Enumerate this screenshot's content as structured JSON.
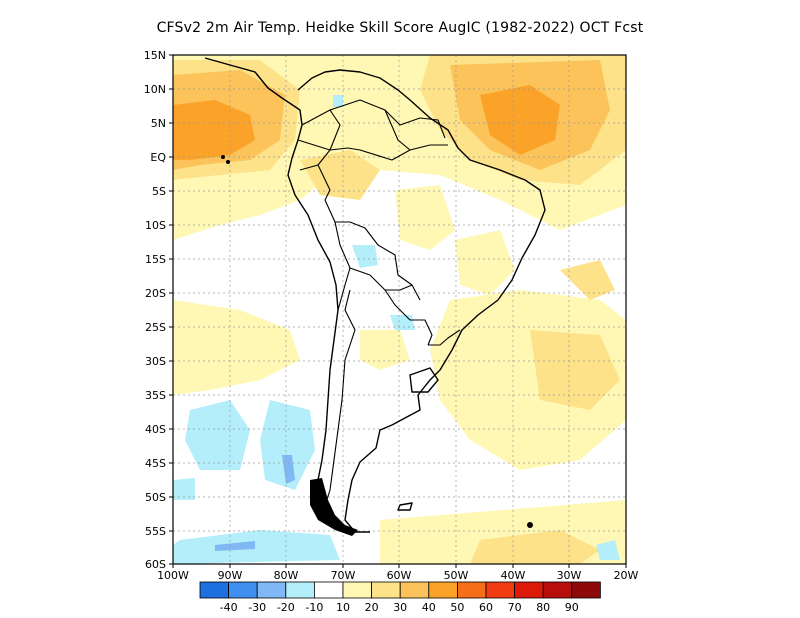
{
  "title": "CFSv2  2m Air Temp. Heidke Skill Score AugIC (1982-2022) OCT Fcst",
  "lat_labels": [
    "15N",
    "10N",
    "5N",
    "EQ",
    "5S",
    "10S",
    "15S",
    "20S",
    "25S",
    "30S",
    "35S",
    "40S",
    "45S",
    "50S",
    "55S",
    "60S"
  ],
  "lon_labels": [
    "100W",
    "90W",
    "80W",
    "70W",
    "60W",
    "50W",
    "40W",
    "30W",
    "20W"
  ],
  "colorbar": {
    "labels": [
      "-40",
      "-30",
      "-20",
      "-10",
      "10",
      "20",
      "30",
      "40",
      "50",
      "60",
      "70",
      "80",
      "90"
    ],
    "colors": [
      "#1e6fe0",
      "#3f8ff0",
      "#80b8f5",
      "#b3eefa",
      "#ffffff",
      "#fff8b4",
      "#fde28a",
      "#fbc35a",
      "#fba329",
      "#f66e18",
      "#f03c10",
      "#dd1a0a",
      "#b80d0d",
      "#8e0a0a"
    ]
  },
  "palette": {
    "ocean_mid": "#fde9a0",
    "warm_light": "#fff8b4",
    "warm_mid": "#fbc35a",
    "warm_strong": "#fba329",
    "cool_light": "#b3eefa",
    "cool_mid": "#80b8f5"
  }
}
